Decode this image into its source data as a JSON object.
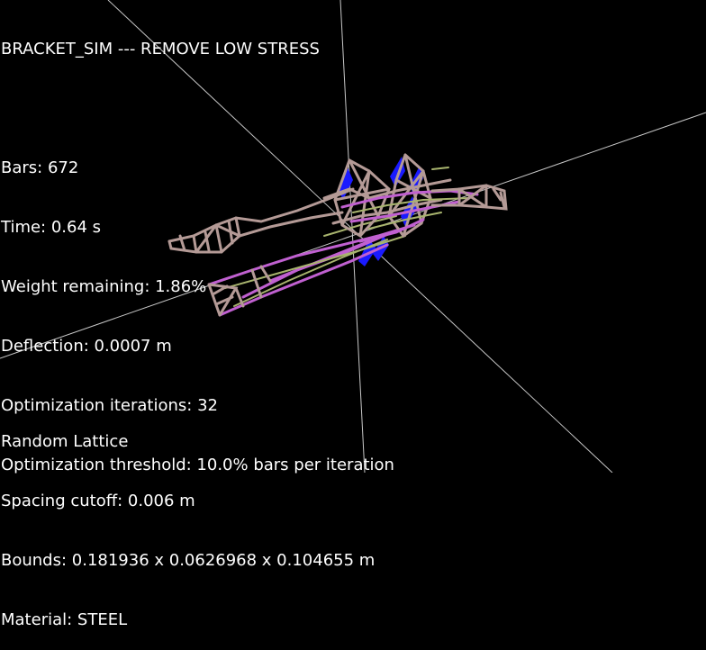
{
  "app": {
    "title": "BRACKET_SIM --- REMOVE LOW STRESS"
  },
  "stats": {
    "bars": "Bars: 672",
    "time": "Time: 0.64 s",
    "weight_remaining": "Weight remaining: 1.86%",
    "deflection": "Deflection: 0.0007 m",
    "iterations": "Optimization iterations: 32",
    "threshold": "Optimization threshold: 10.0% bars per iteration"
  },
  "lattice": {
    "type": "Random Lattice",
    "spacing": "Spacing cutoff: 0.006 m",
    "bounds": "Bounds: 0.181936 x 0.0626968 x 0.104655 m",
    "material": "Material: STEEL"
  },
  "colors": {
    "background": "#000000",
    "text": "#ffffff",
    "axis": "#c8c8c8",
    "bar_low": "#b49a96",
    "bar_mid": "#a8b46e",
    "bar_high": "#c060d0",
    "support": "#1a1aff"
  }
}
